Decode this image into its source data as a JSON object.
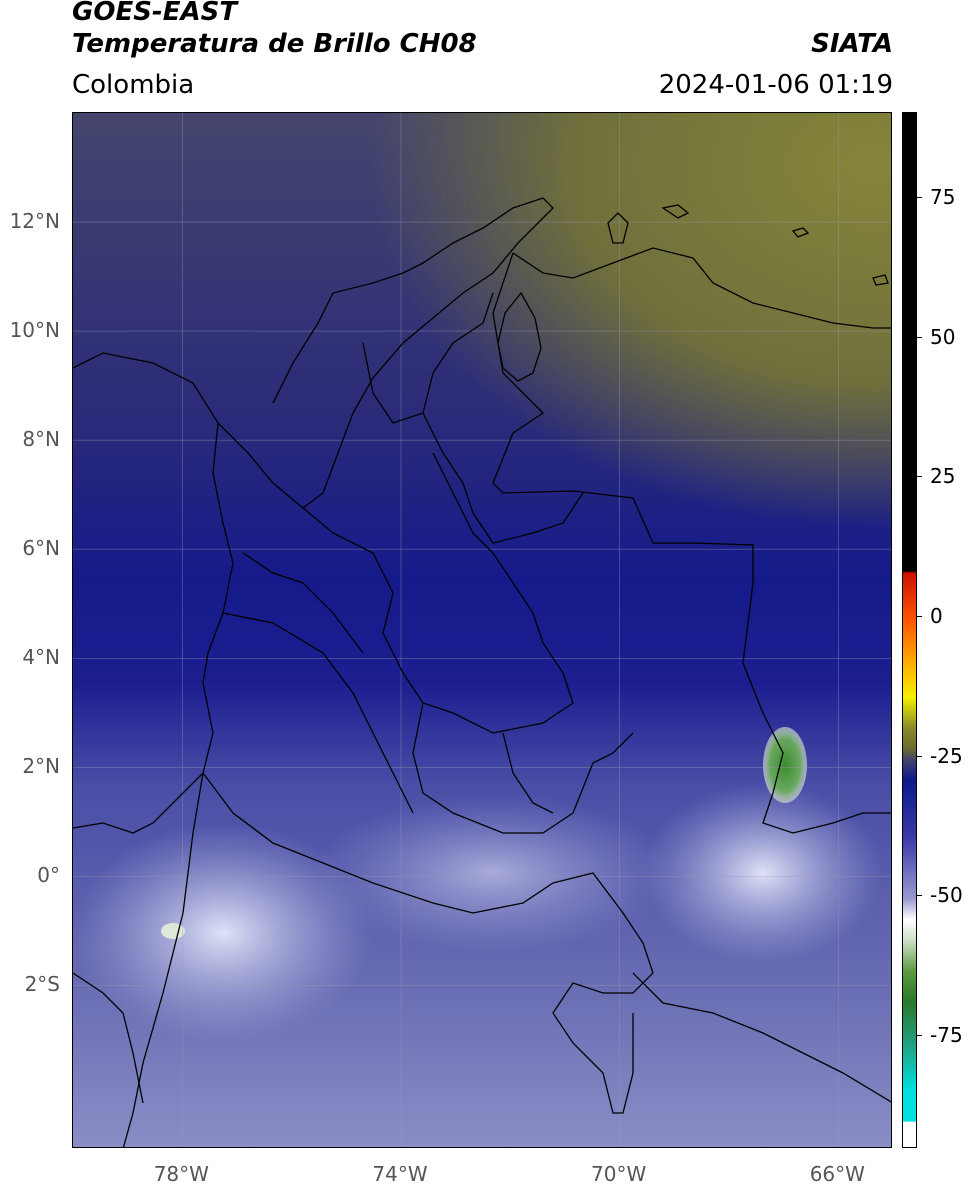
{
  "header": {
    "satellite": "GOES-EAST",
    "product": "Temperatura de Brillo CH08",
    "organization": "SIATA",
    "region": "Colombia",
    "timestamp": "2024-01-06 01:19"
  },
  "map": {
    "lon_range": [
      -80,
      -65
    ],
    "lat_range": [
      -5,
      14
    ],
    "lat_ticks": [
      {
        "value": 12,
        "label": "12°N"
      },
      {
        "value": 10,
        "label": "10°N"
      },
      {
        "value": 8,
        "label": "8°N"
      },
      {
        "value": 6,
        "label": "6°N"
      },
      {
        "value": 4,
        "label": "4°N"
      },
      {
        "value": 2,
        "label": "2°N"
      },
      {
        "value": 0,
        "label": "0°"
      },
      {
        "value": -2,
        "label": "2°S"
      }
    ],
    "lon_ticks": [
      {
        "value": -78,
        "label": "78°W"
      },
      {
        "value": -74,
        "label": "74°W"
      },
      {
        "value": -70,
        "label": "70°W"
      },
      {
        "value": -66,
        "label": "66°W"
      }
    ],
    "gridlines": true
  },
  "colorbar": {
    "range": [
      -95,
      90
    ],
    "ticks": [
      {
        "value": 75,
        "label": "75"
      },
      {
        "value": 50,
        "label": "50"
      },
      {
        "value": 25,
        "label": "25"
      },
      {
        "value": 0,
        "label": "0"
      },
      {
        "value": -25,
        "label": "-25"
      },
      {
        "value": -50,
        "label": "-50"
      },
      {
        "value": -75,
        "label": "-75"
      }
    ],
    "colors": {
      "warm": "#000000",
      "red": "#ff2200",
      "orange": "#ff9900",
      "yellow": "#f5f000",
      "olive": "#8a8a2a",
      "dark_olive": "#4a4a3a",
      "navy": "#0a1a8a",
      "blue": "#3a3aa8",
      "lavender": "#b8b8e0",
      "white": "#ffffff",
      "green": "#3a8a2a",
      "teal": "#00e0e0"
    }
  }
}
